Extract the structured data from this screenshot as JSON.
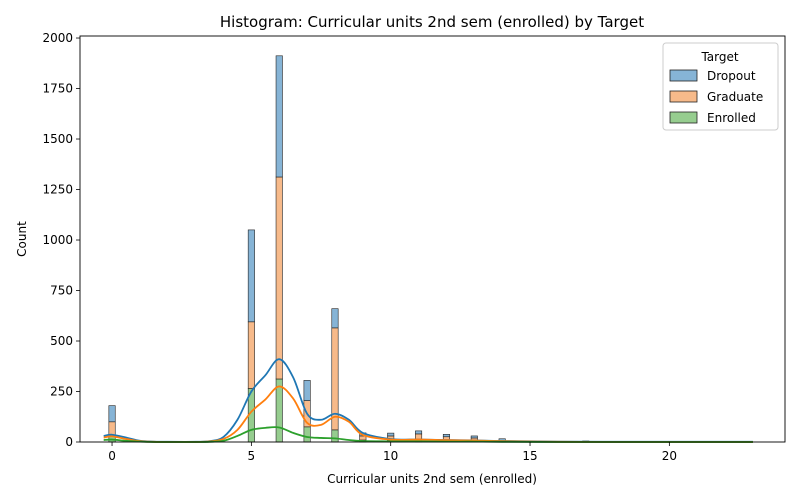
{
  "chart_data": {
    "type": "bar",
    "title": "Histogram: Curricular units 2nd sem (enrolled) by Target",
    "xlabel": "Curricular units 2nd sem (enrolled)",
    "ylabel": "Count",
    "xlim": [
      -1.15,
      24.15
    ],
    "ylim": [
      0,
      2010
    ],
    "x_ticks": [
      0,
      5,
      10,
      15,
      20
    ],
    "y_ticks": [
      0,
      250,
      500,
      750,
      1000,
      1250,
      1500,
      1750,
      2000
    ],
    "stacked": true,
    "bin_width": 0.23,
    "legend": {
      "title": "Target",
      "position": "top-right"
    },
    "series": [
      {
        "name": "Dropout",
        "color": "#1f77b4",
        "fill": "#86b4d6",
        "bins": [
          [
            0,
            80
          ],
          [
            5,
            455
          ],
          [
            6,
            600
          ],
          [
            7,
            100
          ],
          [
            8,
            95
          ],
          [
            9,
            15
          ],
          [
            10,
            14
          ],
          [
            11,
            15
          ],
          [
            12,
            12
          ],
          [
            13,
            10
          ],
          [
            14,
            10
          ],
          [
            17,
            5
          ]
        ],
        "kde_x": [
          -0.3,
          0,
          0.5,
          1,
          1.5,
          2,
          3,
          3.5,
          4,
          4.5,
          5,
          5.5,
          6,
          6.5,
          7,
          7.5,
          8,
          8.5,
          9,
          10,
          11,
          12,
          13,
          14,
          16,
          18,
          20,
          23
        ],
        "kde_y": [
          30,
          36,
          22,
          6,
          2,
          1,
          1,
          4,
          25,
          110,
          250,
          330,
          410,
          320,
          140,
          110,
          140,
          110,
          45,
          15,
          12,
          10,
          8,
          5,
          2,
          1,
          1,
          1
        ]
      },
      {
        "name": "Graduate",
        "color": "#ff7f0e",
        "fill": "#f7ba8a",
        "bins": [
          [
            0,
            70
          ],
          [
            5,
            330
          ],
          [
            6,
            1000
          ],
          [
            7,
            130
          ],
          [
            8,
            505
          ],
          [
            9,
            20
          ],
          [
            10,
            22
          ],
          [
            11,
            30
          ],
          [
            12,
            18
          ],
          [
            13,
            14
          ],
          [
            14,
            3
          ]
        ],
        "kde_x": [
          -0.3,
          0,
          0.5,
          1,
          1.5,
          2,
          3,
          3.5,
          4,
          4.5,
          5,
          5.5,
          6,
          6.5,
          7,
          7.5,
          8,
          8.5,
          9,
          10,
          11,
          12,
          13,
          14,
          16,
          18,
          20,
          23
        ],
        "kde_y": [
          22,
          28,
          15,
          4,
          1,
          0,
          0,
          3,
          15,
          60,
          150,
          210,
          275,
          215,
          95,
          85,
          125,
          100,
          35,
          12,
          12,
          9,
          7,
          4,
          1,
          0,
          0,
          0
        ]
      },
      {
        "name": "Enrolled",
        "color": "#2ca02c",
        "fill": "#96cd8f",
        "bins": [
          [
            0,
            30
          ],
          [
            5,
            265
          ],
          [
            6,
            312
          ],
          [
            7,
            75
          ],
          [
            8,
            60
          ],
          [
            9,
            10
          ],
          [
            10,
            8
          ],
          [
            11,
            10
          ],
          [
            12,
            8
          ],
          [
            13,
            6
          ],
          [
            14,
            3
          ]
        ],
        "kde_x": [
          -0.3,
          0,
          0.5,
          1,
          1.5,
          2,
          3,
          3.5,
          4,
          4.5,
          5,
          5.5,
          6,
          6.5,
          7,
          7.5,
          8,
          8.5,
          9,
          10,
          11,
          12,
          13,
          14,
          16,
          18,
          20,
          23
        ],
        "kde_y": [
          10,
          12,
          6,
          2,
          0,
          0,
          0,
          1,
          6,
          30,
          60,
          70,
          72,
          45,
          25,
          20,
          18,
          10,
          5,
          3,
          3,
          2,
          2,
          1,
          0,
          0,
          0,
          0
        ]
      }
    ]
  }
}
